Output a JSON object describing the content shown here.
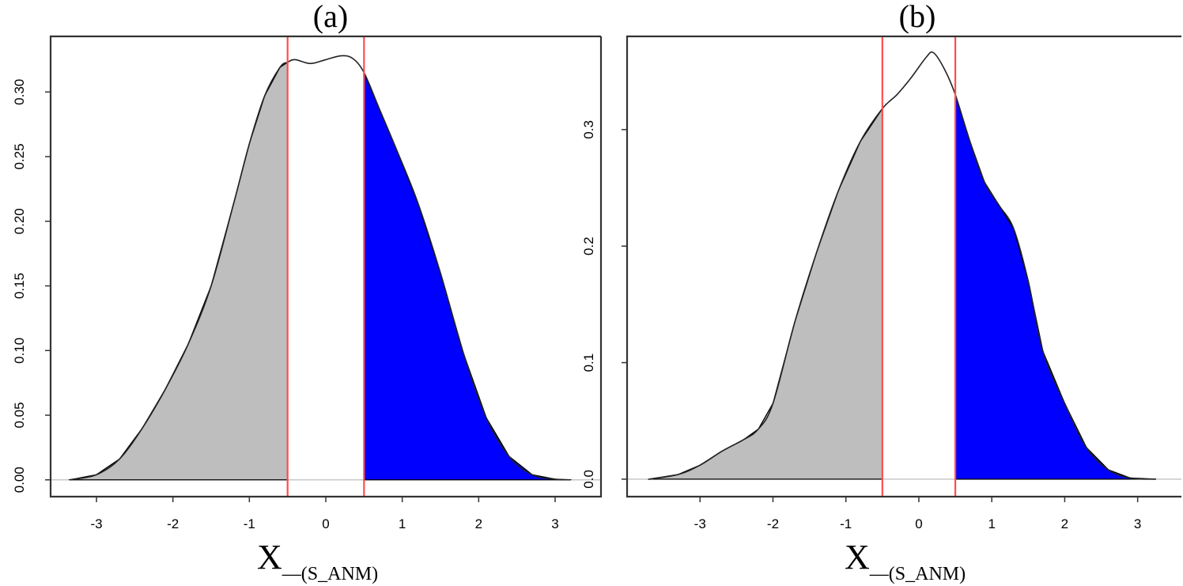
{
  "chart_data": [
    {
      "type": "area",
      "title": "(a)",
      "xlabel_main": "X",
      "xlabel_sub": "—(S_ANM)",
      "xlim": [
        -3.6,
        3.6
      ],
      "ylim": [
        -0.013,
        0.343
      ],
      "xticks": [
        "-3",
        "-2",
        "-1",
        "0",
        "1",
        "2",
        "3"
      ],
      "xtick_values": [
        -3,
        -2,
        -1,
        0,
        1,
        2,
        3
      ],
      "yticks": [
        "0.00",
        "0.05",
        "0.10",
        "0.15",
        "0.20",
        "0.25",
        "0.30"
      ],
      "ytick_values": [
        0,
        0.05,
        0.1,
        0.15,
        0.2,
        0.25,
        0.3
      ],
      "cutoffs": [
        -0.5,
        0.5
      ],
      "left_fill": "#bebebe",
      "right_fill": "#0000ff",
      "line_color": "#ff4d4d",
      "x": [
        -3.35,
        -3.0,
        -2.7,
        -2.4,
        -2.1,
        -1.8,
        -1.5,
        -1.2,
        -1.0,
        -0.8,
        -0.6,
        -0.5,
        -0.4,
        -0.2,
        0.0,
        0.2,
        0.35,
        0.5,
        0.7,
        0.9,
        1.2,
        1.5,
        1.8,
        2.1,
        2.4,
        2.7,
        3.0,
        3.2
      ],
      "y": [
        0.0,
        0.004,
        0.016,
        0.04,
        0.07,
        0.105,
        0.15,
        0.215,
        0.26,
        0.297,
        0.319,
        0.323,
        0.325,
        0.322,
        0.325,
        0.328,
        0.326,
        0.315,
        0.287,
        0.259,
        0.215,
        0.16,
        0.098,
        0.048,
        0.018,
        0.004,
        0.0005,
        0.0
      ]
    },
    {
      "type": "area",
      "title": "(b)",
      "xlabel_main": "X",
      "xlabel_sub": "—(S_ANM)",
      "xlim": [
        -4.0,
        3.6
      ],
      "ylim": [
        -0.015,
        0.38
      ],
      "xticks": [
        "-3",
        "-2",
        "-1",
        "0",
        "1",
        "2",
        "3"
      ],
      "xtick_values": [
        -3,
        -2,
        -1,
        0,
        1,
        2,
        3
      ],
      "yticks": [
        "0.0",
        "0.1",
        "0.2",
        "0.3"
      ],
      "ytick_values": [
        0,
        0.1,
        0.2,
        0.3
      ],
      "cutoffs": [
        -0.5,
        0.5
      ],
      "left_fill": "#bebebe",
      "right_fill": "#0000ff",
      "line_color": "#ff4d4d",
      "x": [
        -3.7,
        -3.3,
        -3.0,
        -2.7,
        -2.4,
        -2.2,
        -2.0,
        -1.7,
        -1.4,
        -1.1,
        -0.8,
        -0.5,
        -0.3,
        -0.1,
        0.1,
        0.2,
        0.35,
        0.5,
        0.7,
        0.9,
        1.1,
        1.3,
        1.5,
        1.7,
        2.0,
        2.3,
        2.6,
        2.9,
        3.25
      ],
      "y": [
        0.0,
        0.004,
        0.012,
        0.024,
        0.034,
        0.043,
        0.065,
        0.135,
        0.195,
        0.248,
        0.29,
        0.318,
        0.33,
        0.345,
        0.362,
        0.366,
        0.352,
        0.33,
        0.29,
        0.255,
        0.235,
        0.215,
        0.17,
        0.11,
        0.065,
        0.027,
        0.008,
        0.001,
        0.0
      ]
    }
  ]
}
